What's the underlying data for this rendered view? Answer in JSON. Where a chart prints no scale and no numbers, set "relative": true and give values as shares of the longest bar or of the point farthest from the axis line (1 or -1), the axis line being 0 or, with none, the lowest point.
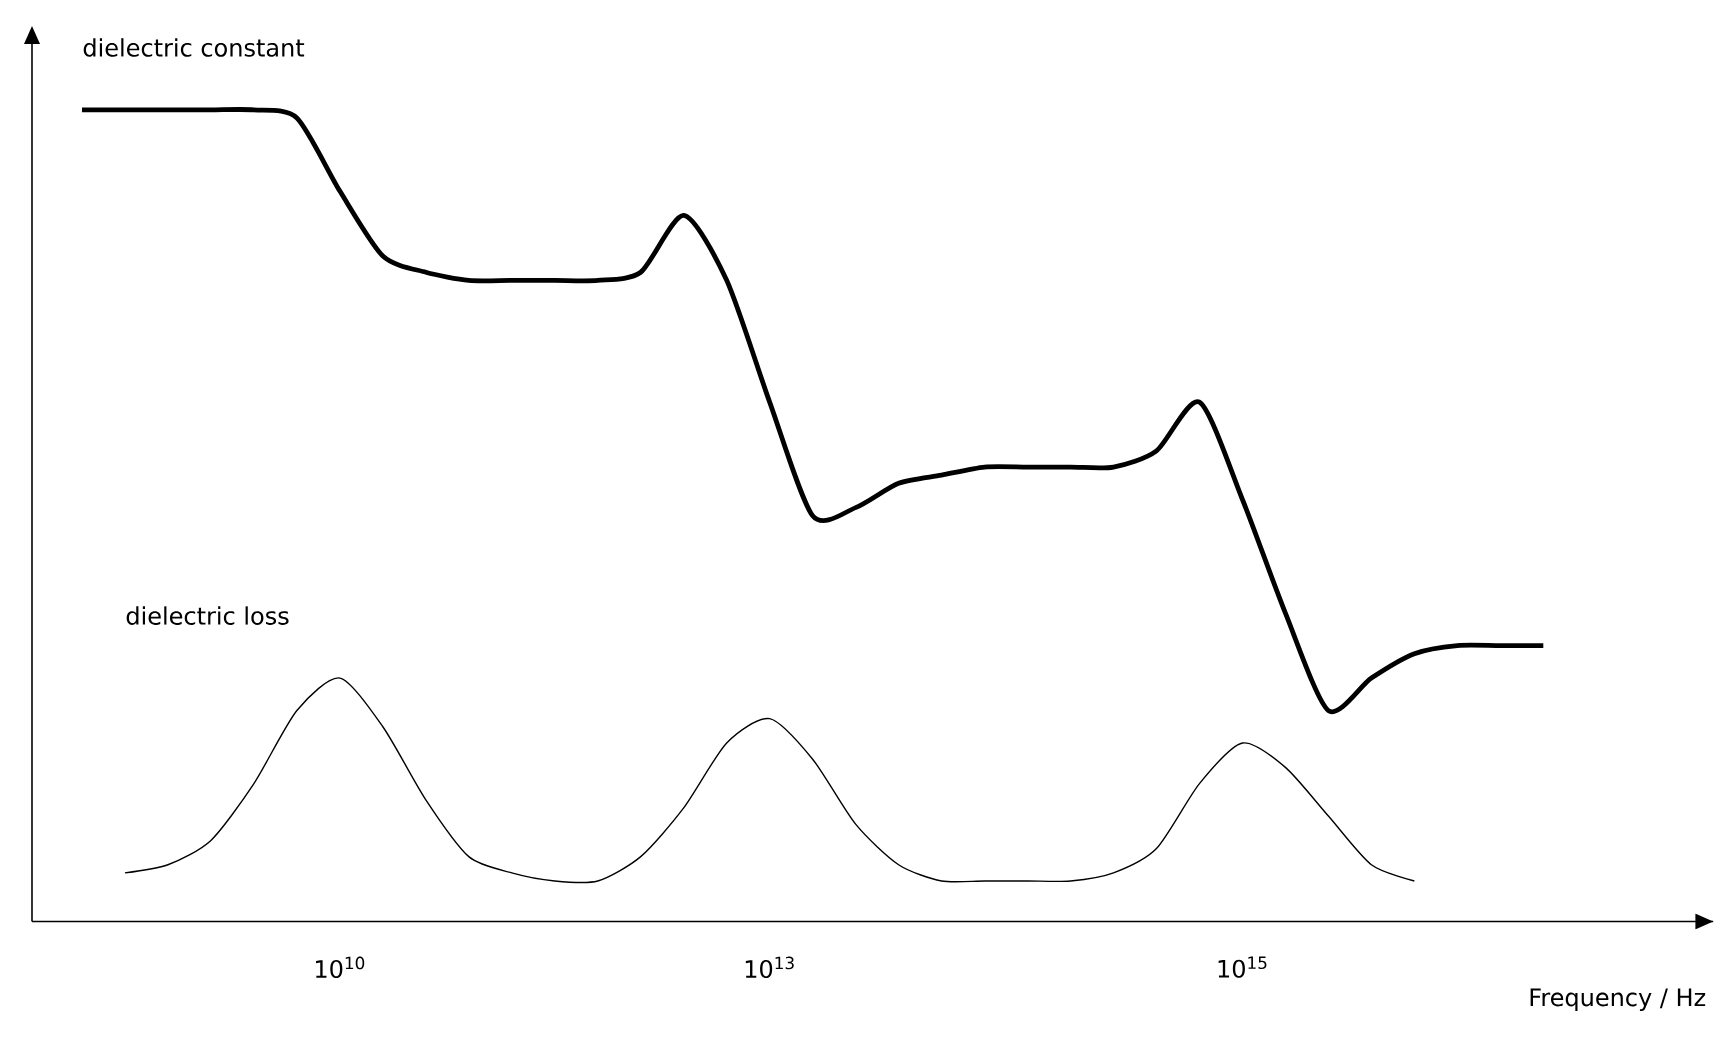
{
  "chart_data": {
    "type": "line",
    "relative": true,
    "xlabel": "Frequency / Hz",
    "categories": [
      null,
      null,
      null,
      null,
      null,
      null,
      "10$^{10}$",
      null,
      null,
      null,
      null,
      null,
      null,
      null,
      null,
      null,
      "10$^{13}$",
      null,
      null,
      null,
      null,
      null,
      null,
      null,
      null,
      null,
      null,
      "10$^{15}$",
      null,
      null,
      null,
      null,
      null,
      null,
      null
    ],
    "grid": false,
    "marker": "none",
    "line_style": "solid",
    "series": [
      {
        "name": "dielectric constant",
        "color": "#000000",
        "values": [
          1.0,
          1.0,
          1.0,
          1.0,
          1.0,
          0.99,
          0.9,
          0.82,
          0.8,
          0.79,
          0.79,
          0.79,
          0.79,
          0.8,
          0.87,
          0.79,
          0.64,
          0.5,
          0.51,
          0.54,
          0.55,
          0.56,
          0.56,
          0.56,
          0.56,
          0.58,
          0.64,
          0.52,
          0.38,
          0.26,
          0.3,
          0.33,
          0.34,
          0.34,
          0.34
        ]
      },
      {
        "name": "dielectric loss",
        "color": "#000000",
        "values": [
          null,
          0.06,
          0.07,
          0.1,
          0.17,
          0.26,
          0.3,
          0.24,
          0.15,
          0.08,
          0.06,
          0.05,
          0.05,
          0.08,
          0.14,
          0.22,
          0.25,
          0.2,
          0.12,
          0.07,
          0.05,
          0.05,
          0.05,
          0.05,
          0.06,
          0.09,
          0.17,
          0.22,
          0.19,
          0.13,
          0.07,
          0.05,
          null,
          null,
          null
        ]
      }
    ]
  }
}
